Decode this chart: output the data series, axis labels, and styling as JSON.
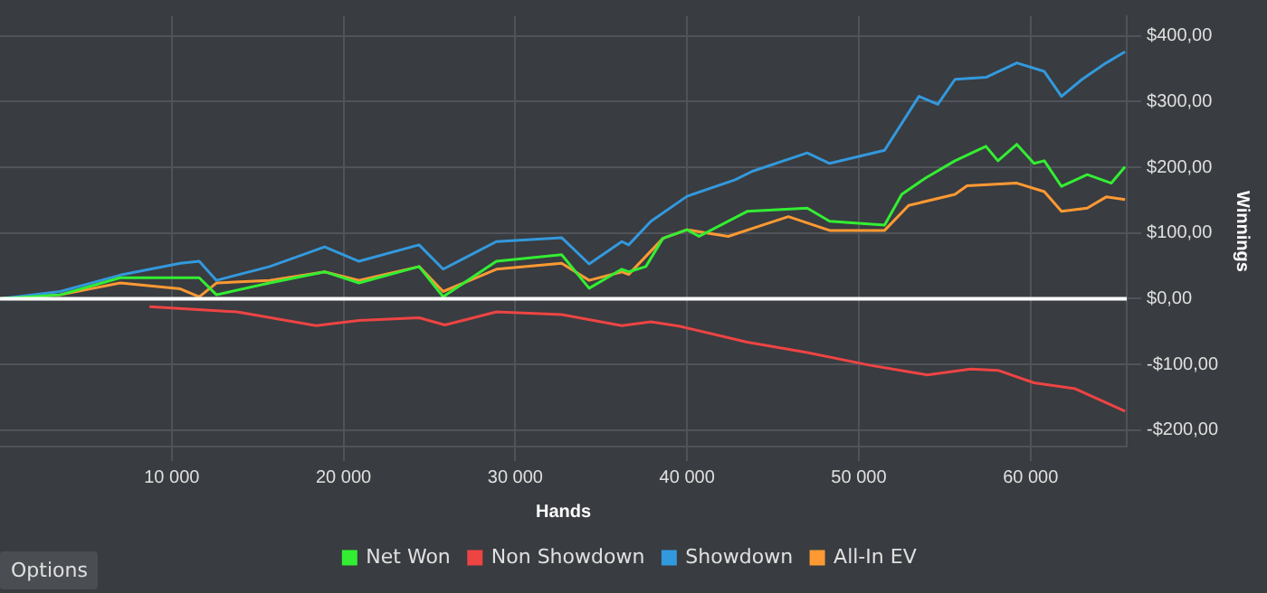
{
  "chart_data": {
    "type": "line",
    "xlabel": "Hands",
    "ylabel": "Winnings",
    "xlim": [
      0,
      65600
    ],
    "ylim": [
      -225,
      430
    ],
    "xticks": [
      {
        "value": 10000,
        "label": "10 000"
      },
      {
        "value": 20000,
        "label": "20 000"
      },
      {
        "value": 30000,
        "label": "30 000"
      },
      {
        "value": 40000,
        "label": "40 000"
      },
      {
        "value": 50000,
        "label": "50 000"
      },
      {
        "value": 60000,
        "label": "60 000"
      }
    ],
    "yticks": [
      {
        "value": -200,
        "label": "-$200,00"
      },
      {
        "value": -100,
        "label": "-$100,00"
      },
      {
        "value": 0,
        "label": "$0,00"
      },
      {
        "value": 100,
        "label": "$100,00"
      },
      {
        "value": 200,
        "label": "$200,00"
      },
      {
        "value": 300,
        "label": "$300,00"
      },
      {
        "value": 400,
        "label": "$400,00"
      }
    ],
    "grid": true,
    "legend": "bottom",
    "marker": "none",
    "line_style": "solid",
    "ref_lines": [
      {
        "axis": "y",
        "value": 0,
        "color": "#ffffff"
      }
    ],
    "annotations": [
      "Options"
    ],
    "series": [
      {
        "name": "Net Won",
        "color": "#33ee33",
        "x": [
          0,
          3500,
          7000,
          11600,
          12600,
          15700,
          18900,
          20900,
          24400,
          25800,
          28900,
          32700,
          34300,
          36200,
          36600,
          37600,
          38600,
          40000,
          40700,
          43500,
          47000,
          48300,
          51500,
          52500,
          53900,
          55600,
          57400,
          58100,
          59200,
          60200,
          60800,
          61800,
          63300,
          64700,
          65500
        ],
        "values": [
          0,
          6,
          32,
          32,
          6,
          24,
          41,
          24,
          49,
          3,
          57,
          67,
          16,
          45,
          41,
          49,
          92,
          105,
          95,
          133,
          138,
          118,
          112,
          159,
          184,
          210,
          232,
          210,
          235,
          206,
          210,
          171,
          189,
          176,
          201
        ]
      },
      {
        "name": "Non Showdown",
        "color": "#ee4444",
        "x": [
          8700,
          13800,
          18400,
          20900,
          24400,
          25900,
          28900,
          32700,
          36200,
          37900,
          39600,
          43500,
          47000,
          50600,
          54000,
          56500,
          58100,
          60200,
          62600,
          65500
        ],
        "values": [
          -12,
          -20,
          -41,
          -33,
          -29,
          -40,
          -20,
          -24,
          -41,
          -35,
          -42,
          -66,
          -82,
          -101,
          -116,
          -107,
          -109,
          -128,
          -137,
          -171
        ]
      },
      {
        "name": "Showdown",
        "color": "#3399dd",
        "x": [
          0,
          3500,
          7000,
          10500,
          11600,
          12600,
          15700,
          18900,
          20900,
          24400,
          25800,
          28900,
          32700,
          34300,
          36200,
          36600,
          37900,
          40000,
          42800,
          43800,
          47000,
          48300,
          51500,
          53500,
          54600,
          55600,
          57400,
          59200,
          60800,
          61800,
          63000,
          64400,
          65500
        ],
        "values": [
          0,
          11,
          36,
          54,
          57,
          28,
          49,
          79,
          57,
          82,
          45,
          87,
          93,
          53,
          87,
          82,
          118,
          156,
          181,
          194,
          222,
          206,
          226,
          308,
          296,
          334,
          337,
          359,
          346,
          308,
          334,
          359,
          376
        ]
      },
      {
        "name": "All-In EV",
        "color": "#ff9933",
        "x": [
          0,
          3500,
          7000,
          10500,
          11600,
          12600,
          15700,
          18900,
          20900,
          24400,
          25800,
          28900,
          32700,
          34300,
          36200,
          36600,
          38600,
          40000,
          42400,
          45900,
          48300,
          51500,
          52900,
          55600,
          56300,
          59200,
          60800,
          61800,
          63300,
          64400,
          65500
        ],
        "values": [
          0,
          6,
          24,
          15,
          3,
          24,
          28,
          41,
          28,
          49,
          11,
          45,
          54,
          28,
          41,
          37,
          92,
          105,
          95,
          125,
          104,
          104,
          142,
          159,
          172,
          176,
          163,
          133,
          138,
          155,
          151
        ]
      }
    ]
  }
}
